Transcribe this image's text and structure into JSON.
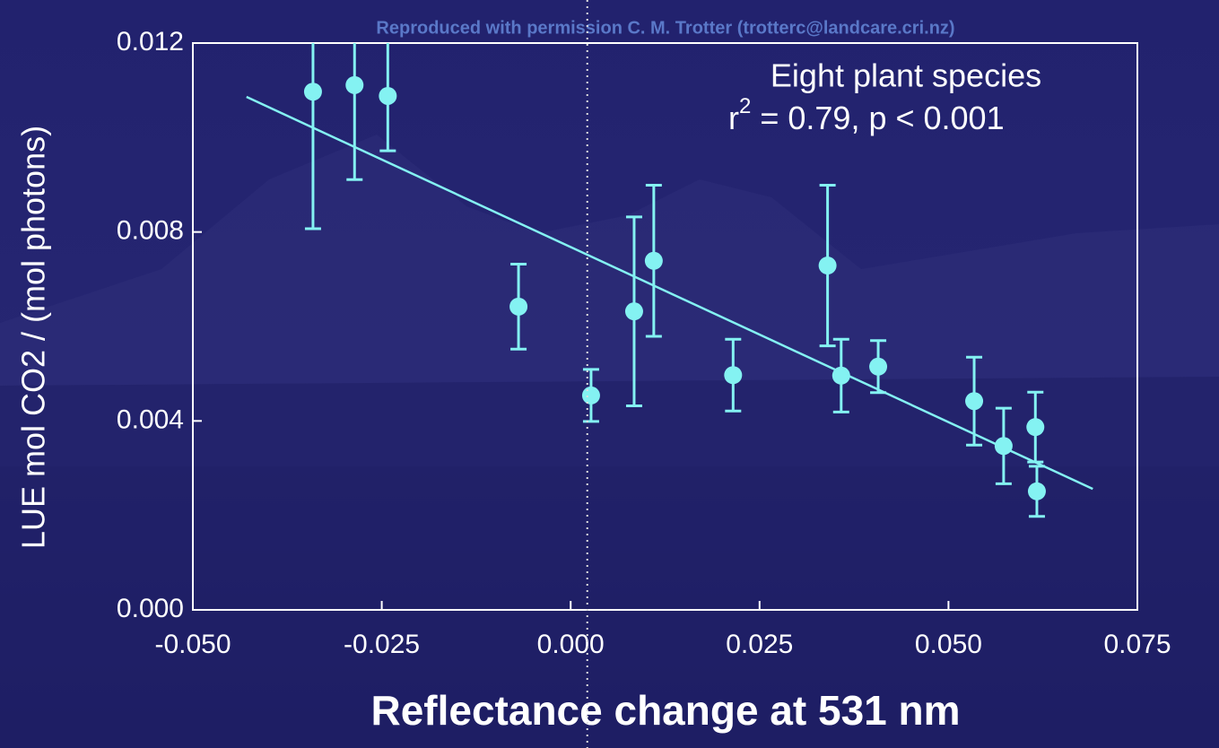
{
  "chart_data": {
    "type": "scatter",
    "credit": "Reproduced with permission C. M. Trotter (trotterc@landcare.cri.nz)",
    "annotation": "Eight plant species",
    "stat_parts": [
      "r",
      "2",
      " = 0.79, p < 0.001"
    ],
    "x_label": "Reflectance change at 531 nm",
    "y_label": "LUE mol CO2 / (mol photons)",
    "x": [
      -0.0341,
      -0.0286,
      -0.0242,
      -0.0069,
      0.0027,
      0.0084,
      0.011,
      0.0215,
      0.034,
      0.0358,
      0.0407,
      0.0534,
      0.0573,
      0.0615,
      0.0617
    ],
    "values": [
      0.01097,
      0.01111,
      0.01088,
      0.00642,
      0.00454,
      0.00632,
      0.00739,
      0.00497,
      0.00729,
      0.00496,
      0.00515,
      0.00442,
      0.00347,
      0.00387,
      0.00251
    ],
    "errors": [
      0.0029,
      0.002,
      0.00116,
      0.0009,
      0.00055,
      0.002,
      0.0016,
      0.00076,
      0.0017,
      0.00077,
      0.00055,
      0.00093,
      0.0008,
      0.00074,
      0.00053
    ],
    "color": "#84f2f2",
    "fit": {
      "x": [
        -0.0429,
        0.0691
      ],
      "y": [
        0.01086,
        0.00256
      ]
    },
    "reference_x": 0.0022,
    "xlim": [
      -0.05,
      0.075
    ],
    "ylim": [
      0,
      0.012
    ],
    "xticks": [
      {
        "value": -0.05,
        "label": "-0.050"
      },
      {
        "value": -0.025,
        "label": "-0.025"
      },
      {
        "value": 0,
        "label": "0.000"
      },
      {
        "value": 0.025,
        "label": "0.025"
      },
      {
        "value": 0.05,
        "label": "0.050"
      },
      {
        "value": 0.075,
        "label": "0.075"
      }
    ],
    "yticks": [
      {
        "value": 0,
        "label": "0.000"
      },
      {
        "value": 0.004,
        "label": "0.004"
      },
      {
        "value": 0.008,
        "label": "0.008"
      },
      {
        "value": 0.012,
        "label": "0.012"
      }
    ]
  }
}
